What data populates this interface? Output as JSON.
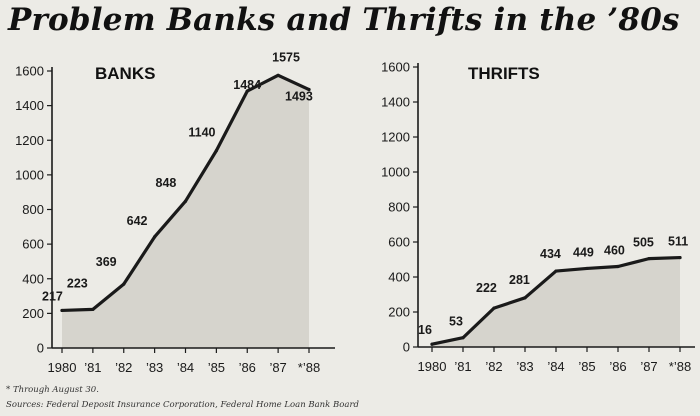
{
  "page_title": "Problem Banks and Thrifts in the ’80s",
  "footnotes": {
    "note": "* Through August 30.",
    "sources": "Sources: Federal Deposit Insurance Corporation, Federal Home Loan Bank Board"
  },
  "colors": {
    "fill": "#d6d4cd",
    "line": "#1a1a1a",
    "background": "#ecebe6"
  },
  "chart_data": [
    {
      "type": "area",
      "title": "BANKS",
      "xlabel": "",
      "ylabel": "",
      "categories": [
        "1980",
        "’81",
        "’82",
        "’83",
        "’84",
        "’85",
        "’86",
        "’87",
        "*’88"
      ],
      "values": [
        217,
        223,
        369,
        642,
        848,
        1140,
        1484,
        1575,
        1493
      ],
      "data_labels": [
        "217",
        "223",
        "369",
        "642",
        "848",
        "1140",
        "1484",
        "1575",
        "1493"
      ],
      "yticks": [
        0,
        200,
        400,
        600,
        800,
        1000,
        1200,
        1400,
        1600
      ],
      "ylim": [
        0,
        1600
      ],
      "grid": false
    },
    {
      "type": "area",
      "title": "THRIFTS",
      "xlabel": "",
      "ylabel": "",
      "categories": [
        "1980",
        "’81",
        "’82",
        "’83",
        "’84",
        "’85",
        "’86",
        "’87",
        "*’88"
      ],
      "values": [
        16,
        53,
        222,
        281,
        434,
        449,
        460,
        505,
        511
      ],
      "data_labels": [
        "16",
        "53",
        "222",
        "281",
        "434",
        "449",
        "460",
        "505",
        "511"
      ],
      "yticks": [
        0,
        200,
        400,
        600,
        800,
        1000,
        1200,
        1400,
        1600
      ],
      "ylim": [
        0,
        1600
      ],
      "grid": false
    }
  ]
}
